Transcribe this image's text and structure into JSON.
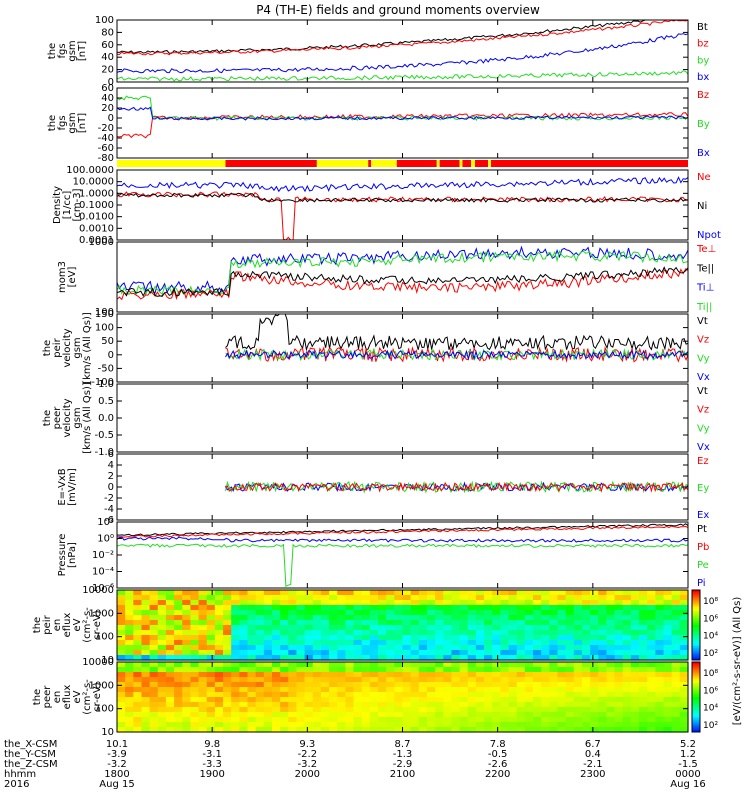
{
  "title": "P4 (TH-E) fields and ground moments overview",
  "colors": {
    "black": "#000000",
    "red": "#ff0000",
    "green": "#22dd22",
    "blue": "#0000ff",
    "yellow": "#ffff00"
  },
  "chart_data": [
    {
      "type": "line",
      "panel": "fgs-gsm-magnitude",
      "ylabel": [
        "the",
        "fgs",
        "gsm",
        "[nT]"
      ],
      "ylim": [
        0,
        100
      ],
      "yticks": [
        "100",
        "80",
        "60",
        "40",
        "20",
        "0"
      ],
      "legend": [
        {
          "label": "Bt",
          "color": "black"
        },
        {
          "label": "bz",
          "color": "red"
        },
        {
          "label": "by",
          "color": "green"
        },
        {
          "label": "bx",
          "color": "blue"
        }
      ]
    },
    {
      "type": "line",
      "panel": "fgs-gsm-components",
      "ylabel": [
        "the",
        "fgs",
        "gsm",
        "[nT]"
      ],
      "ylim": [
        -80,
        60
      ],
      "yticks": [
        "60",
        "40",
        "20",
        "0",
        "-20",
        "-40",
        "-60",
        "-80"
      ],
      "legend": [
        {
          "label": "Bz",
          "color": "red"
        },
        {
          "label": "By",
          "color": "green"
        },
        {
          "label": "Bx",
          "color": "blue"
        }
      ]
    },
    {
      "type": "bar",
      "panel": "mode-bar",
      "segments": [
        {
          "start": 0,
          "end": 0.19,
          "color": "yellow"
        },
        {
          "start": 0.19,
          "end": 0.35,
          "color": "red"
        },
        {
          "start": 0.35,
          "end": 0.44,
          "color": "yellow"
        },
        {
          "start": 0.44,
          "end": 0.445,
          "color": "red"
        },
        {
          "start": 0.445,
          "end": 0.49,
          "color": "yellow"
        },
        {
          "start": 0.49,
          "end": 0.56,
          "color": "red"
        },
        {
          "start": 0.56,
          "end": 0.565,
          "color": "yellow"
        },
        {
          "start": 0.565,
          "end": 0.6,
          "color": "red"
        },
        {
          "start": 0.6,
          "end": 0.605,
          "color": "yellow"
        },
        {
          "start": 0.605,
          "end": 0.62,
          "color": "red"
        },
        {
          "start": 0.62,
          "end": 0.627,
          "color": "yellow"
        },
        {
          "start": 0.627,
          "end": 0.65,
          "color": "red"
        },
        {
          "start": 0.65,
          "end": 0.655,
          "color": "yellow"
        },
        {
          "start": 0.655,
          "end": 1,
          "color": "red"
        }
      ]
    },
    {
      "type": "line",
      "panel": "density",
      "ylabel": [
        "Density",
        "[1/cc]",
        "[cm-3]"
      ],
      "scale": "log",
      "yticks": [
        "100.0000",
        "10.0000",
        "1.0000",
        "0.1000",
        "0.0100",
        "0.0010",
        "0.0001"
      ],
      "legend": [
        {
          "label": "Ne",
          "color": "red"
        },
        {
          "label": "Ni",
          "color": "black"
        },
        {
          "label": "Npot",
          "color": "blue"
        }
      ]
    },
    {
      "type": "line",
      "panel": "temperature",
      "ylabel": [
        "mom3",
        "[eV]"
      ],
      "scale": "log",
      "yticks": [
        "1000",
        "100"
      ],
      "legend": [
        {
          "label": "Te⊥",
          "color": "red"
        },
        {
          "label": "Te||",
          "color": "black"
        },
        {
          "label": "Ti⊥",
          "color": "blue"
        },
        {
          "label": "Ti||",
          "color": "green"
        }
      ]
    },
    {
      "type": "line",
      "panel": "peir-velocity",
      "ylabel": [
        "the",
        "peir",
        "velocity",
        "gsm",
        "[km/s (All Qs)]"
      ],
      "ylim": [
        -100,
        150
      ],
      "yticks": [
        "150",
        "100",
        "50",
        "0",
        "-50",
        "-100"
      ],
      "legend": [
        {
          "label": "Vt",
          "color": "black"
        },
        {
          "label": "Vz",
          "color": "red"
        },
        {
          "label": "Vy",
          "color": "green"
        },
        {
          "label": "Vx",
          "color": "blue"
        }
      ]
    },
    {
      "type": "line",
      "panel": "peer-velocity",
      "ylabel": [
        "the",
        "peer",
        "velocity",
        "gsm",
        "[km/s (All Qs)]"
      ],
      "ylim": [
        -1.0,
        1.0
      ],
      "yticks": [
        "1.0",
        "0.5",
        "0.0",
        "-0.5",
        "-1.0"
      ],
      "legend": [
        {
          "label": "Vt",
          "color": "black"
        },
        {
          "label": "Vz",
          "color": "red"
        },
        {
          "label": "Vy",
          "color": "green"
        },
        {
          "label": "Vx",
          "color": "blue"
        }
      ]
    },
    {
      "type": "line",
      "panel": "electric-field",
      "ylabel": [
        "E=-VxB",
        "[mV/m]"
      ],
      "ylim": [
        -6,
        6
      ],
      "yticks": [
        "6",
        "4",
        "2",
        "0",
        "-2",
        "-4",
        "-6"
      ],
      "legend": [
        {
          "label": "Ez",
          "color": "red"
        },
        {
          "label": "Ey",
          "color": "green"
        },
        {
          "label": "Ex",
          "color": "blue"
        }
      ]
    },
    {
      "type": "line",
      "panel": "pressure",
      "ylabel": [
        "Pressure",
        "[nPa]"
      ],
      "scale": "log",
      "yticks": [
        "10²",
        "10⁰",
        "10⁻²",
        "10⁻⁴",
        "10⁻⁶"
      ],
      "legend": [
        {
          "label": "Pt",
          "color": "black"
        },
        {
          "label": "Pb",
          "color": "red"
        },
        {
          "label": "Pe",
          "color": "green"
        },
        {
          "label": "Pi",
          "color": "blue"
        }
      ]
    },
    {
      "type": "heatmap",
      "panel": "peir-eflux",
      "ylabel": [
        "the",
        "peir",
        "en",
        "eflux",
        "eV",
        "(cm²-s-",
        "sr-eV)"
      ],
      "scale": "log",
      "yticks": [
        "10000",
        "1000",
        "100",
        "10"
      ]
    },
    {
      "type": "heatmap",
      "panel": "peer-eflux",
      "ylabel": [
        "the",
        "peer",
        "en",
        "eflux",
        "eV",
        "(cm²-s-",
        "sr-eV)"
      ],
      "scale": "log",
      "yticks": [
        "10000",
        "1000",
        "100",
        "10"
      ]
    }
  ],
  "colorbar": {
    "ticks": [
      "10⁸",
      "10⁶",
      "10⁴",
      "10²",
      "10⁸",
      "10⁶",
      "10⁴",
      "10²"
    ],
    "label": "[eV/(cm²-s-sr-eV)] (All Qs)"
  },
  "xaxis": {
    "row_labels": [
      "the_X-CSM",
      "the_Y-CSM",
      "the_Z-CSM",
      "hhmm",
      "2016"
    ],
    "columns": [
      {
        "rows": [
          "10.1",
          "-3.9",
          "-3.2",
          "1800",
          "Aug 15"
        ]
      },
      {
        "rows": [
          "9.8",
          "-3.1",
          "-3.3",
          "1900",
          ""
        ]
      },
      {
        "rows": [
          "9.3",
          "-2.2",
          "-3.2",
          "2000",
          ""
        ]
      },
      {
        "rows": [
          "8.7",
          "-1.3",
          "-2.9",
          "2100",
          ""
        ]
      },
      {
        "rows": [
          "7.8",
          "-0.5",
          "-2.6",
          "2200",
          ""
        ]
      },
      {
        "rows": [
          "6.7",
          "0.4",
          "-2.1",
          "2300",
          ""
        ]
      },
      {
        "rows": [
          "5.2",
          "1.2",
          "-1.5",
          "0000",
          "Aug 16"
        ]
      }
    ]
  }
}
